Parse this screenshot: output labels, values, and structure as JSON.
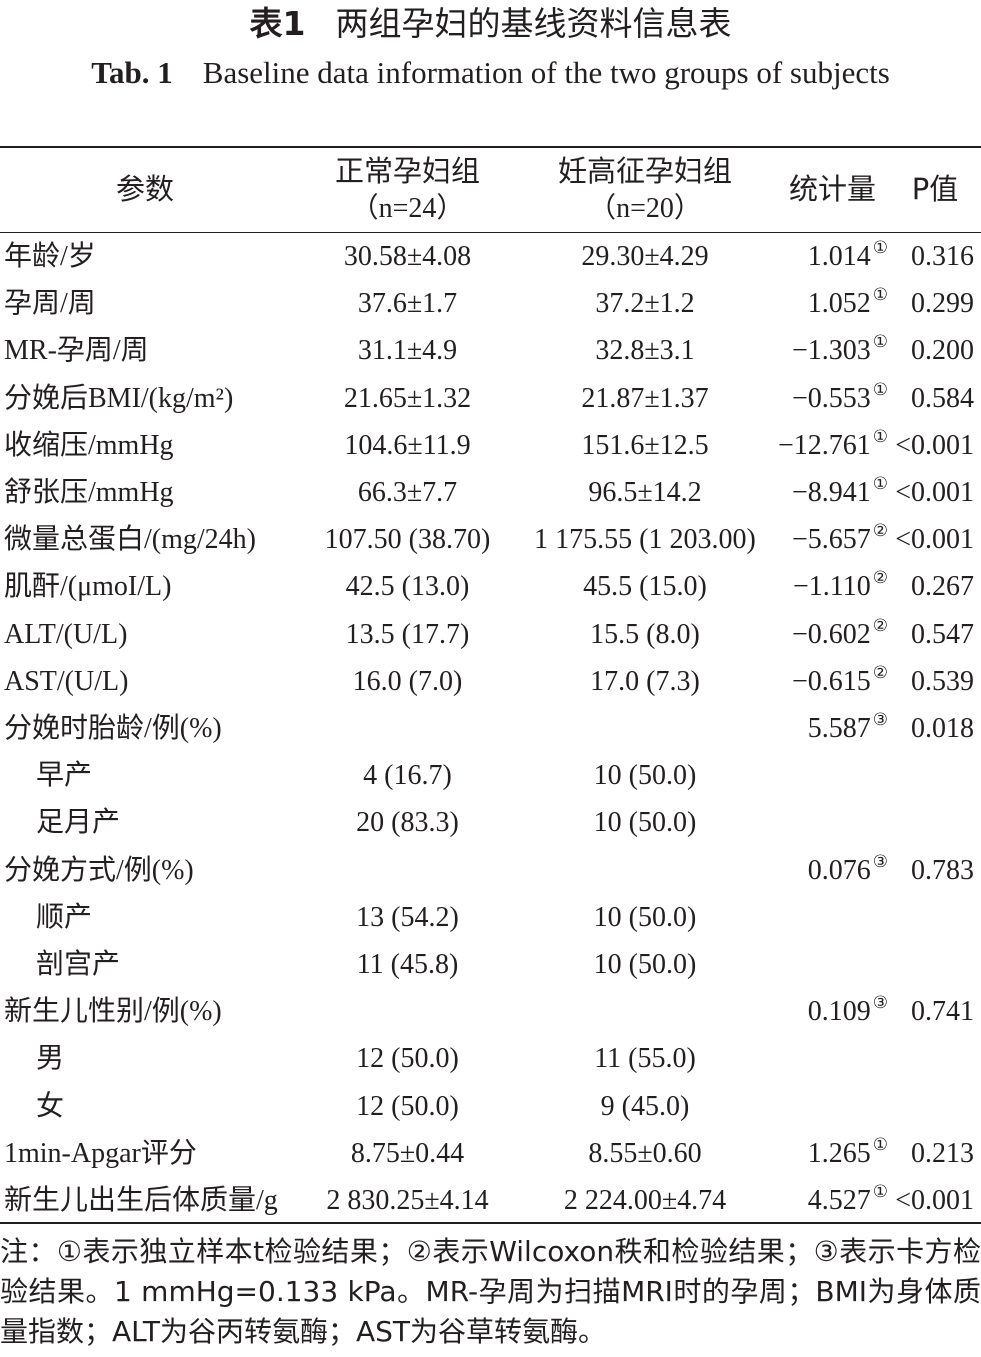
{
  "title": {
    "cn_label": "表1",
    "cn_text": "两组孕妇的基线资料信息表",
    "en_label": "Tab. 1",
    "en_text": "Baseline data information of the two groups of subjects"
  },
  "headers": {
    "param": "参数",
    "normal": "正常孕妇组",
    "normal_n": "（n=24）",
    "hdp": "妊高征孕妇组",
    "hdp_n": "（n=20）",
    "stat": "统计量",
    "p": "P值"
  },
  "rows": [
    {
      "param": "年龄/岁",
      "normal": "30.58±4.08",
      "hdp": "29.30±4.29",
      "stat": "1.014",
      "mark": "①",
      "p": "0.316"
    },
    {
      "param": "孕周/周",
      "normal": "37.6±1.7",
      "hdp": "37.2±1.2",
      "stat": "1.052",
      "mark": "①",
      "p": "0.299"
    },
    {
      "param": "MR-孕周/周",
      "normal": "31.1±4.9",
      "hdp": "32.8±3.1",
      "stat": "−1.303",
      "mark": "①",
      "p": "0.200"
    },
    {
      "param": "分娩后BMI/(kg/m²)",
      "normal": "21.65±1.32",
      "hdp": "21.87±1.37",
      "stat": "−0.553",
      "mark": "①",
      "p": "0.584"
    },
    {
      "param": "收缩压/mmHg",
      "normal": "104.6±11.9",
      "hdp": "151.6±12.5",
      "stat": "−12.761",
      "mark": "①",
      "p": "<0.001"
    },
    {
      "param": "舒张压/mmHg",
      "normal": "66.3±7.7",
      "hdp": "96.5±14.2",
      "stat": "−8.941",
      "mark": "①",
      "p": "<0.001"
    },
    {
      "param": "微量总蛋白/(mg/24h)",
      "normal": "107.50 (38.70)",
      "hdp": "1 175.55 (1 203.00)",
      "stat": "−5.657",
      "mark": "②",
      "p": "<0.001"
    },
    {
      "param": "肌酐/(μmoI/L)",
      "normal": "42.5 (13.0)",
      "hdp": "45.5 (15.0)",
      "stat": "−1.110",
      "mark": "②",
      "p": "0.267"
    },
    {
      "param": "ALT/(U/L)",
      "normal": "13.5 (17.7)",
      "hdp": "15.5 (8.0)",
      "stat": "−0.602",
      "mark": "②",
      "p": "0.547"
    },
    {
      "param": "AST/(U/L)",
      "normal": "16.0 (7.0)",
      "hdp": "17.0 (7.3)",
      "stat": "−0.615",
      "mark": "②",
      "p": "0.539"
    },
    {
      "param": "分娩时胎龄/例(%)",
      "normal": "",
      "hdp": "",
      "stat": "5.587",
      "mark": "③",
      "p": "0.018"
    },
    {
      "param": "早产",
      "indent": true,
      "normal": "4 (16.7)",
      "hdp": "10 (50.0)",
      "stat": "",
      "mark": "",
      "p": ""
    },
    {
      "param": "足月产",
      "indent": true,
      "normal": "20 (83.3)",
      "hdp": "10 (50.0)",
      "stat": "",
      "mark": "",
      "p": ""
    },
    {
      "param": "分娩方式/例(%)",
      "normal": "",
      "hdp": "",
      "stat": "0.076",
      "mark": "③",
      "p": "0.783"
    },
    {
      "param": "顺产",
      "indent": true,
      "normal": "13 (54.2)",
      "hdp": "10 (50.0)",
      "stat": "",
      "mark": "",
      "p": ""
    },
    {
      "param": "剖宫产",
      "indent": true,
      "normal": "11 (45.8)",
      "hdp": "10 (50.0)",
      "stat": "",
      "mark": "",
      "p": ""
    },
    {
      "param": "新生儿性别/例(%)",
      "normal": "",
      "hdp": "",
      "stat": "0.109",
      "mark": "③",
      "p": "0.741"
    },
    {
      "param": "男",
      "indent": true,
      "normal": "12 (50.0)",
      "hdp": "11 (55.0)",
      "stat": "",
      "mark": "",
      "p": ""
    },
    {
      "param": "女",
      "indent": true,
      "normal": "12 (50.0)",
      "hdp": "9 (45.0)",
      "stat": "",
      "mark": "",
      "p": ""
    },
    {
      "param": "1min-Apgar评分",
      "normal": "8.75±0.44",
      "hdp": "8.55±0.60",
      "stat": "1.265",
      "mark": "①",
      "p": "0.213"
    },
    {
      "param": "新生儿出生后体质量/g",
      "normal": "2 830.25±4.14",
      "hdp": "2 224.00±4.74",
      "stat": "4.527",
      "mark": "①",
      "p": "<0.001"
    }
  ],
  "note": "注：①表示独立样本t检验结果；②表示Wilcoxon秩和检验结果；③表示卡方检验结果。1 mmHg=0.133 kPa。MR-孕周为扫描MRI时的孕周；BMI为身体质量指数；ALT为谷丙转氨酶；AST为谷草转氨酶。"
}
